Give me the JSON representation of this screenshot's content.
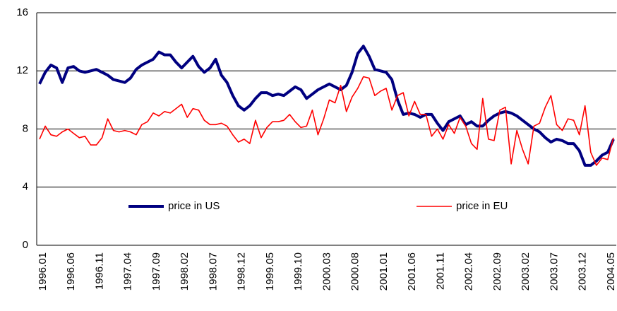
{
  "chart_data": {
    "type": "line",
    "categories": [
      "1996.01",
      null,
      null,
      null,
      null,
      "1996.06",
      null,
      null,
      null,
      null,
      "1996.11",
      null,
      null,
      null,
      null,
      "1997.04",
      null,
      null,
      null,
      null,
      "1997.09",
      null,
      null,
      null,
      null,
      "1998.02",
      null,
      null,
      null,
      null,
      "1998.07",
      null,
      null,
      null,
      null,
      "1998.12",
      null,
      null,
      null,
      null,
      "1999.05",
      null,
      null,
      null,
      null,
      "1999.10",
      null,
      null,
      null,
      null,
      "2000.03",
      null,
      null,
      null,
      null,
      "2000.08",
      null,
      null,
      null,
      null,
      "2001.01",
      null,
      null,
      null,
      null,
      "2001.06",
      null,
      null,
      null,
      null,
      "2001.11",
      null,
      null,
      null,
      null,
      "2002.04",
      null,
      null,
      null,
      null,
      "2002.09",
      null,
      null,
      null,
      null,
      "2003.02",
      null,
      null,
      null,
      null,
      "2003.07",
      null,
      null,
      null,
      null,
      "2003.12",
      null,
      null,
      null,
      null,
      "2004.05",
      null
    ],
    "series": [
      {
        "name": "price in US",
        "color": "#000080",
        "values": [
          11.1,
          11.9,
          12.4,
          12.2,
          11.2,
          12.2,
          12.3,
          12.0,
          11.9,
          12.0,
          12.1,
          11.9,
          11.7,
          11.4,
          11.3,
          11.2,
          11.5,
          12.1,
          12.4,
          12.6,
          12.8,
          13.3,
          13.1,
          13.1,
          12.6,
          12.2,
          12.6,
          13.0,
          12.3,
          11.9,
          12.2,
          12.8,
          11.7,
          11.2,
          10.3,
          9.6,
          9.3,
          9.6,
          10.1,
          10.5,
          10.5,
          10.3,
          10.4,
          10.3,
          10.6,
          10.9,
          10.7,
          10.1,
          10.4,
          10.7,
          10.9,
          11.1,
          10.9,
          10.7,
          11.0,
          11.9,
          13.2,
          13.7,
          13.0,
          12.1,
          12.0,
          11.9,
          11.4,
          10.0,
          9.0,
          9.1,
          9.0,
          8.8,
          9.0,
          9.0,
          8.4,
          7.9,
          8.5,
          8.7,
          8.9,
          8.3,
          8.5,
          8.2,
          8.2,
          8.6,
          8.9,
          9.1,
          9.2,
          9.1,
          8.9,
          8.6,
          8.3,
          8.0,
          7.8,
          7.4,
          7.1,
          7.3,
          7.2,
          7.0,
          7.0,
          6.5,
          5.5,
          5.5,
          5.8,
          6.2,
          6.4,
          7.3
        ]
      },
      {
        "name": "price in EU",
        "color": "#ff0000",
        "values": [
          7.3,
          8.2,
          7.6,
          7.5,
          7.8,
          8.0,
          7.7,
          7.4,
          7.5,
          6.9,
          6.9,
          7.4,
          8.7,
          7.9,
          7.8,
          7.9,
          7.8,
          7.6,
          8.3,
          8.5,
          9.1,
          8.9,
          9.2,
          9.1,
          9.4,
          9.7,
          8.8,
          9.4,
          9.3,
          8.6,
          8.3,
          8.3,
          8.4,
          8.2,
          7.6,
          7.1,
          7.3,
          7.0,
          8.6,
          7.4,
          8.1,
          8.5,
          8.5,
          8.6,
          9.0,
          8.5,
          8.1,
          8.2,
          9.3,
          7.6,
          8.7,
          10.0,
          9.8,
          11.0,
          9.2,
          10.2,
          10.8,
          11.6,
          11.5,
          10.3,
          10.6,
          10.8,
          9.3,
          10.3,
          10.5,
          8.9,
          9.9,
          9.0,
          9.0,
          7.5,
          8.0,
          7.3,
          8.3,
          7.7,
          8.8,
          8.2,
          7.0,
          6.6,
          10.1,
          7.3,
          7.2,
          9.3,
          9.5,
          5.6,
          7.9,
          6.6,
          5.6,
          8.2,
          8.4,
          9.5,
          10.3,
          8.3,
          7.9,
          8.7,
          8.6,
          7.6,
          9.6,
          6.4,
          5.5,
          6.0,
          5.9,
          7.4
        ]
      }
    ],
    "ylim": [
      0,
      16
    ],
    "yticks": [
      0,
      4,
      8,
      12,
      16
    ],
    "grid": true
  }
}
